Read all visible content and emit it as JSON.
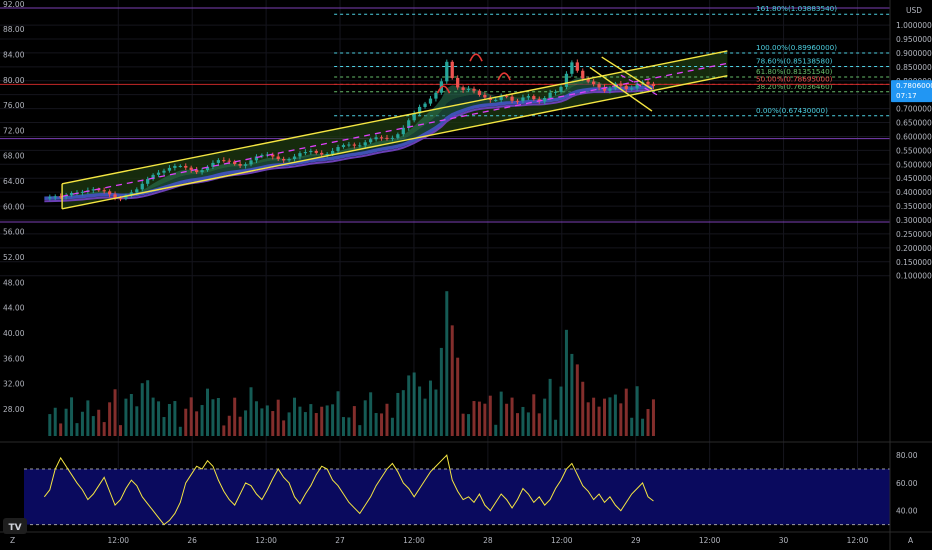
{
  "app": {
    "currency": "USD",
    "price_label": "0.78060000",
    "countdown": "07:17",
    "tv_logo": "TV",
    "auto_label": "A",
    "tz_label": "Z"
  },
  "colors": {
    "background": "#000000",
    "up": "#26a69a",
    "down": "#ef5350",
    "channel": "#f5e642",
    "fib_cyan": "#4dd0e1",
    "fib_green": "#66bb6a",
    "rsi": "#f5e642",
    "rsi_bg": "#0a0a5e",
    "price_tag": "#2196f3",
    "ema_blue": "#3f51b5",
    "band_green": "#2e7d5b"
  },
  "chart_data": {
    "type": "candlestick",
    "price_axis": {
      "ticks": [
        92.0,
        88.0,
        84.0,
        80.0,
        76.0,
        72.0,
        68.0,
        64.0,
        60.0,
        56.0,
        52.0,
        48.0,
        44.0,
        40.0,
        36.0,
        32.0,
        28.0
      ],
      "labels": [
        "92.00",
        "88.00",
        "84.00",
        "80.00",
        "76.00",
        "72.00",
        "68.00",
        "64.00",
        "60.00",
        "56.00",
        "52.00",
        "48.00",
        "44.00",
        "40.00",
        "36.00",
        "32.00",
        "28.00"
      ]
    },
    "usd_axis": {
      "ticks": [
        1.0,
        0.95,
        0.9,
        0.85,
        0.8,
        0.75,
        0.7,
        0.65,
        0.6,
        0.55,
        0.5,
        0.45,
        0.4,
        0.35,
        0.3,
        0.25,
        0.2,
        0.15,
        0.1
      ],
      "labels": [
        "1.00000000",
        "0.95000000",
        "0.90000000",
        "0.85000000",
        "0.80000000",
        "0.75000000",
        "0.70000000",
        "0.65000000",
        "0.60000000",
        "0.55000000",
        "0.50000000",
        "0.45000000",
        "0.40000000",
        "0.35000000",
        "0.30000000",
        "0.25000000",
        "0.20000000",
        "0.15000000",
        "0.10000000"
      ]
    },
    "time_axis": {
      "labels": [
        "12:00",
        "26",
        "12:00",
        "27",
        "12:00",
        "28",
        "12:00",
        "29",
        "12:00",
        "30",
        "12:00"
      ],
      "positions": [
        0.5,
        1.0,
        1.5,
        2.0,
        2.5,
        3.0,
        3.5,
        4.0,
        4.5,
        5.0,
        5.5
      ]
    },
    "price_range": [
      -0.49,
      1.09
    ],
    "time_range": [
      -0.3,
      5.72
    ],
    "fib_levels": [
      {
        "label": "161.80%(1.03883540)",
        "value": 1.0388354
      },
      {
        "label": "100.00%(0.89960000)",
        "value": 0.8996
      },
      {
        "label": "78.60%(0.85138580)",
        "value": 0.8513858
      },
      {
        "label": "61.80%(0.81351540)",
        "value": 0.8135154
      },
      {
        "label": "50.00%(0.78695000)",
        "value": 0.78695
      },
      {
        "label": "38.20%(0.76036460)",
        "value": 0.7603646
      },
      {
        "label": "0.00%(0.67430000)",
        "value": 0.6743
      }
    ],
    "horizontal_lines": [
      0.592,
      0.293
    ],
    "channel": {
      "upper": [
        [
          0.12,
          0.43
        ],
        [
          4.62,
          0.907
        ]
      ],
      "lower": [
        [
          0.12,
          0.34
        ],
        [
          4.62,
          0.818
        ]
      ]
    },
    "pullback_channel": {
      "upper": [
        [
          3.77,
          0.885
        ],
        [
          4.11,
          0.77
        ]
      ],
      "lower": [
        [
          3.69,
          0.848
        ],
        [
          4.11,
          0.691
        ]
      ]
    },
    "volume_range": [
      0,
      0.3
    ],
    "rsi_axis": {
      "ticks": [
        80,
        60,
        40
      ],
      "labels": [
        "80.00",
        "60.00",
        "40.00"
      ],
      "range": [
        29,
        88
      ],
      "bands": [
        70,
        30
      ]
    },
    "closes_series": [
      0.378,
      0.382,
      0.385,
      0.383,
      0.389,
      0.397,
      0.398,
      0.401,
      0.406,
      0.41,
      0.407,
      0.403,
      0.392,
      0.378,
      0.377,
      0.389,
      0.399,
      0.41,
      0.43,
      0.447,
      0.462,
      0.47,
      0.477,
      0.487,
      0.494,
      0.494,
      0.488,
      0.48,
      0.472,
      0.479,
      0.491,
      0.505,
      0.515,
      0.513,
      0.51,
      0.501,
      0.495,
      0.5,
      0.514,
      0.528,
      0.533,
      0.535,
      0.528,
      0.519,
      0.514,
      0.519,
      0.528,
      0.54,
      0.544,
      0.548,
      0.541,
      0.535,
      0.537,
      0.548,
      0.562,
      0.569,
      0.571,
      0.567,
      0.568,
      0.579,
      0.59,
      0.597,
      0.595,
      0.592,
      0.595,
      0.608,
      0.631,
      0.658,
      0.682,
      0.706,
      0.718,
      0.736,
      0.757,
      0.798,
      0.868,
      0.81,
      0.776,
      0.767,
      0.771,
      0.764,
      0.749,
      0.74,
      0.731,
      0.731,
      0.746,
      0.743,
      0.728,
      0.727,
      0.74,
      0.745,
      0.734,
      0.726,
      0.738,
      0.757,
      0.76,
      0.778,
      0.825,
      0.866,
      0.836,
      0.808,
      0.797,
      0.788,
      0.776,
      0.764,
      0.772,
      0.79,
      0.782,
      0.77,
      0.773,
      0.79,
      0.796,
      0.789,
      0.781
    ],
    "closes_x_range": [
      0.0,
      4.12
    ],
    "rsi_series": [
      50,
      55,
      70,
      78,
      72,
      66,
      60,
      55,
      48,
      52,
      58,
      64,
      54,
      44,
      48,
      56,
      62,
      58,
      50,
      45,
      40,
      35,
      30,
      33,
      38,
      46,
      60,
      66,
      72,
      70,
      76,
      72,
      62,
      54,
      48,
      44,
      52,
      60,
      58,
      52,
      48,
      55,
      63,
      70,
      64,
      60,
      50,
      45,
      52,
      58,
      66,
      72,
      70,
      62,
      58,
      52,
      46,
      42,
      38,
      44,
      50,
      58,
      64,
      70,
      74,
      68,
      60,
      56,
      50,
      56,
      62,
      68,
      72,
      76,
      80,
      62,
      54,
      48,
      50,
      46,
      52,
      44,
      40,
      46,
      52,
      48,
      42,
      48,
      56,
      52,
      46,
      50,
      44,
      48,
      56,
      62,
      70,
      74,
      66,
      58,
      54,
      48,
      52,
      46,
      50,
      44,
      40,
      46,
      52,
      56,
      60,
      50,
      47
    ]
  }
}
